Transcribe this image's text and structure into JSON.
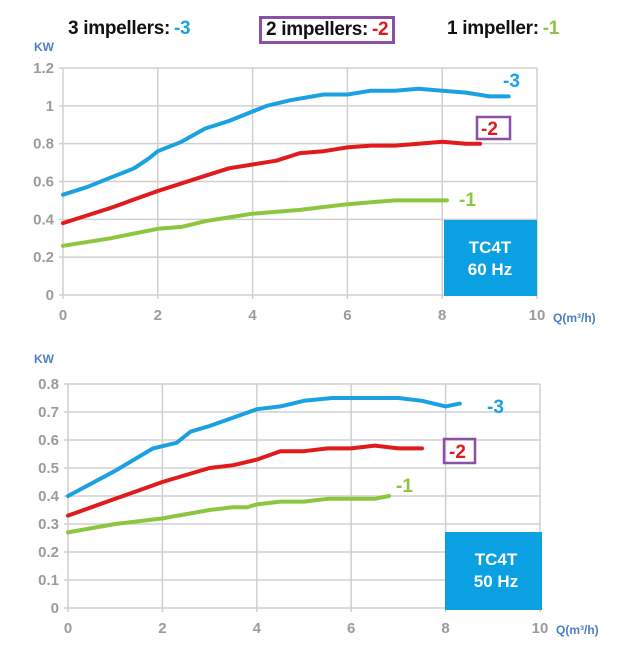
{
  "legend": {
    "items": [
      {
        "label": "3 impellers:",
        "code": "-3",
        "color": "#1ba1e2"
      },
      {
        "label": "2 impellers:",
        "code": "-2",
        "color": "#e01b1b",
        "boxed": true
      },
      {
        "label": "1 impeller:",
        "code": "-1",
        "color": "#8cc63e"
      }
    ],
    "box_color": "#8b4fa3"
  },
  "colors": {
    "series_3": "#1ba1e2",
    "series_2": "#e01b1b",
    "series_1": "#8cc63e",
    "grid": "#d0d0d0",
    "tick": "#9b9b9b",
    "axis_label": "#4a7fc0",
    "model_box": "#0aa0e2"
  },
  "chart_data": [
    {
      "type": "line",
      "title": "TC4T 60 Hz",
      "model_box": {
        "line1": "TC4T",
        "line2": "60 Hz"
      },
      "xlabel": "Q(m³/h)",
      "ylabel": "KW",
      "xlim": [
        0,
        10
      ],
      "ylim": [
        0,
        1.2
      ],
      "x_ticks": [
        0,
        2,
        4,
        6,
        8,
        10
      ],
      "y_ticks": [
        "0",
        "0.2",
        "0.4",
        "0.6",
        "0.8",
        "1",
        "1.2"
      ],
      "grid": true,
      "series": [
        {
          "name": "-3",
          "label": "3 impellers",
          "color": "#1ba1e2",
          "x": [
            0,
            0.5,
            1,
            1.5,
            1.8,
            2,
            2.5,
            3,
            3.5,
            4,
            4.3,
            4.8,
            5.5,
            6,
            6.5,
            7,
            7.5,
            8,
            8.5,
            9,
            9.4
          ],
          "y": [
            0.53,
            0.57,
            0.62,
            0.67,
            0.72,
            0.76,
            0.81,
            0.88,
            0.92,
            0.97,
            1.0,
            1.03,
            1.06,
            1.06,
            1.08,
            1.08,
            1.09,
            1.08,
            1.07,
            1.05,
            1.05
          ]
        },
        {
          "name": "-2",
          "label": "2 impellers",
          "color": "#e01b1b",
          "x": [
            0,
            1,
            2,
            3,
            3.5,
            4,
            4.5,
            5,
            5.5,
            6,
            6.5,
            7,
            7.5,
            8,
            8.5,
            8.8
          ],
          "y": [
            0.38,
            0.46,
            0.55,
            0.63,
            0.67,
            0.69,
            0.71,
            0.75,
            0.76,
            0.78,
            0.79,
            0.79,
            0.8,
            0.81,
            0.8,
            0.8
          ]
        },
        {
          "name": "-1",
          "label": "1 impeller",
          "color": "#8cc63e",
          "x": [
            0,
            1,
            2,
            2.5,
            3,
            3.5,
            4,
            5,
            6,
            6.5,
            7,
            8,
            8.1
          ],
          "y": [
            0.26,
            0.3,
            0.35,
            0.36,
            0.39,
            0.41,
            0.43,
            0.45,
            0.48,
            0.49,
            0.5,
            0.5,
            0.5
          ]
        }
      ]
    },
    {
      "type": "line",
      "title": "TC4T 50 Hz",
      "model_box": {
        "line1": "TC4T",
        "line2": "50 Hz"
      },
      "xlabel": "Q(m³/h)",
      "ylabel": "KW",
      "xlim": [
        0,
        10
      ],
      "ylim": [
        0,
        0.8
      ],
      "x_ticks": [
        0,
        2,
        4,
        6,
        8,
        10
      ],
      "y_ticks": [
        "0",
        "0.1",
        "0.2",
        "0.3",
        "0.4",
        "0.5",
        "0.6",
        "0.7",
        "0.8"
      ],
      "grid": true,
      "series": [
        {
          "name": "-3",
          "label": "3 impellers",
          "color": "#1ba1e2",
          "x": [
            0,
            1,
            1.8,
            2.3,
            2.6,
            3,
            3.5,
            4,
            4.5,
            5,
            5.6,
            6,
            7,
            7.5,
            8,
            8.3
          ],
          "y": [
            0.4,
            0.49,
            0.57,
            0.59,
            0.63,
            0.65,
            0.68,
            0.71,
            0.72,
            0.74,
            0.75,
            0.75,
            0.75,
            0.74,
            0.72,
            0.73
          ]
        },
        {
          "name": "-2",
          "label": "2 impellers",
          "color": "#e01b1b",
          "x": [
            0,
            1,
            2,
            3,
            3.5,
            4,
            4.5,
            5,
            5.5,
            6,
            6.5,
            7,
            7.5
          ],
          "y": [
            0.33,
            0.39,
            0.45,
            0.5,
            0.51,
            0.53,
            0.56,
            0.56,
            0.57,
            0.57,
            0.58,
            0.57,
            0.57
          ]
        },
        {
          "name": "-1",
          "label": "1 impeller",
          "color": "#8cc63e",
          "x": [
            0,
            1,
            2,
            3,
            3.5,
            3.8,
            4,
            4.5,
            5,
            5.5,
            6,
            6.5,
            6.8
          ],
          "y": [
            0.27,
            0.3,
            0.32,
            0.35,
            0.36,
            0.36,
            0.37,
            0.38,
            0.38,
            0.39,
            0.39,
            0.39,
            0.4
          ]
        }
      ]
    }
  ]
}
